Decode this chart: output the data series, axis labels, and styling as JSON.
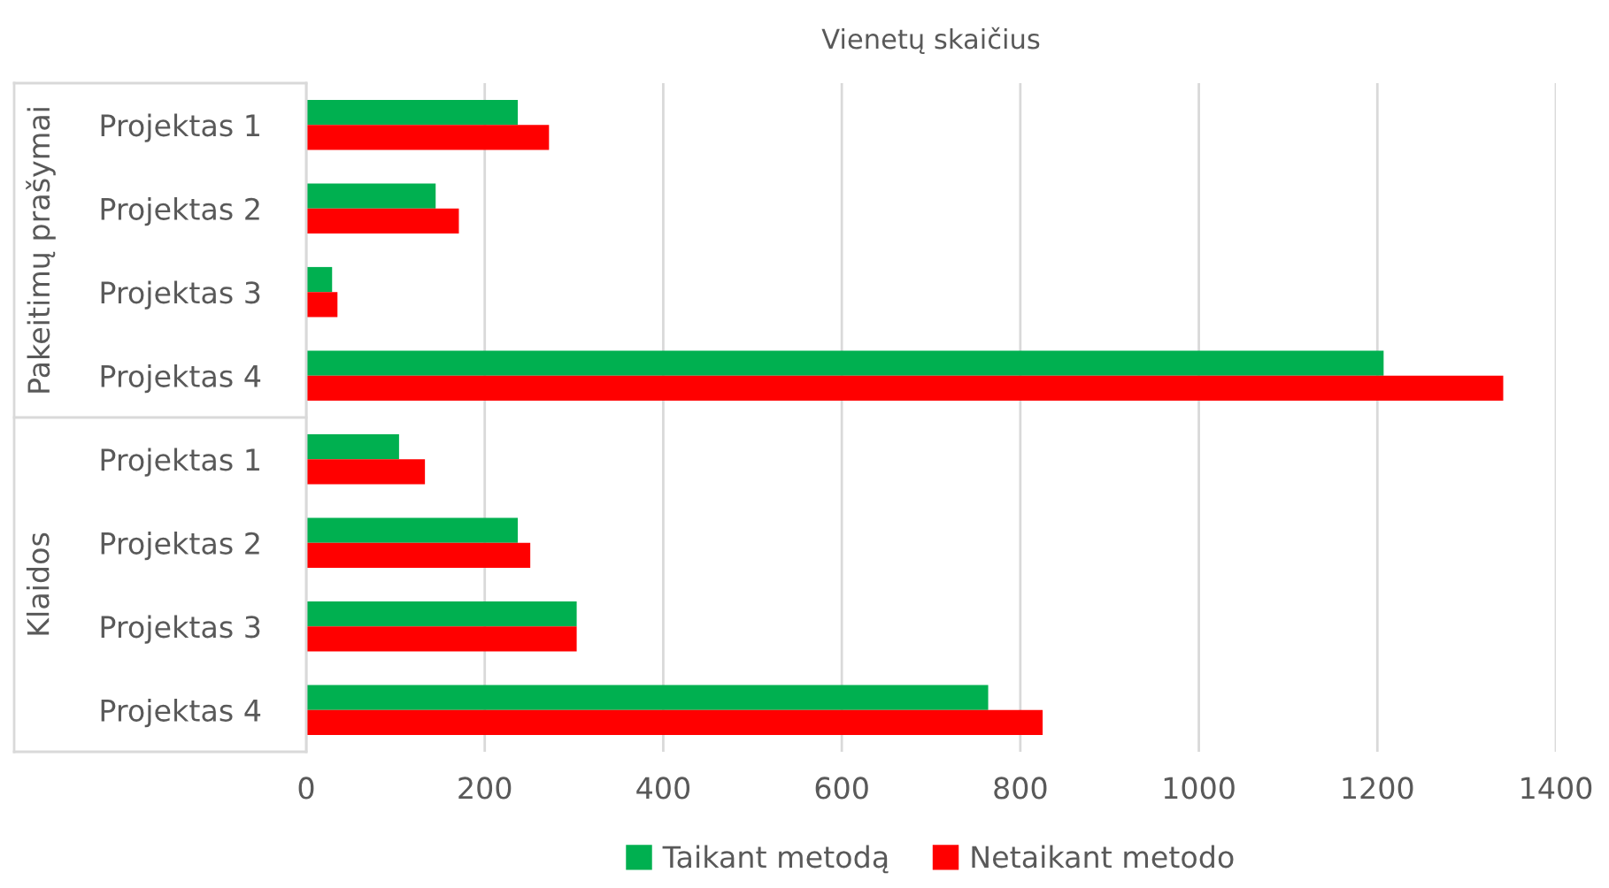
{
  "chart_data": {
    "type": "bar",
    "orientation": "horizontal",
    "title": "Vienetų skaičius",
    "categories": [
      "Projektas 1",
      "Projektas 2",
      "Projektas 3",
      "Projektas 4",
      "Projektas 1",
      "Projektas 2",
      "Projektas 3",
      "Projektas 4"
    ],
    "annotations": [
      "Pakeitimų prašymai",
      "Klaidos"
    ],
    "series": [
      {
        "name": "Taikant metodą",
        "color": "#00b050",
        "values": [
          237,
          145,
          29,
          1207,
          104,
          237,
          303,
          764
        ]
      },
      {
        "name": "Netaikant metodo",
        "color": "#ff0000",
        "values": [
          272,
          171,
          35,
          1341,
          133,
          251,
          303,
          825
        ]
      }
    ],
    "xlim": [
      0,
      1400
    ],
    "xticks": [
      0,
      200,
      400,
      600,
      800,
      1000,
      1200,
      1400
    ],
    "grid": "x",
    "legend": "bottom"
  }
}
